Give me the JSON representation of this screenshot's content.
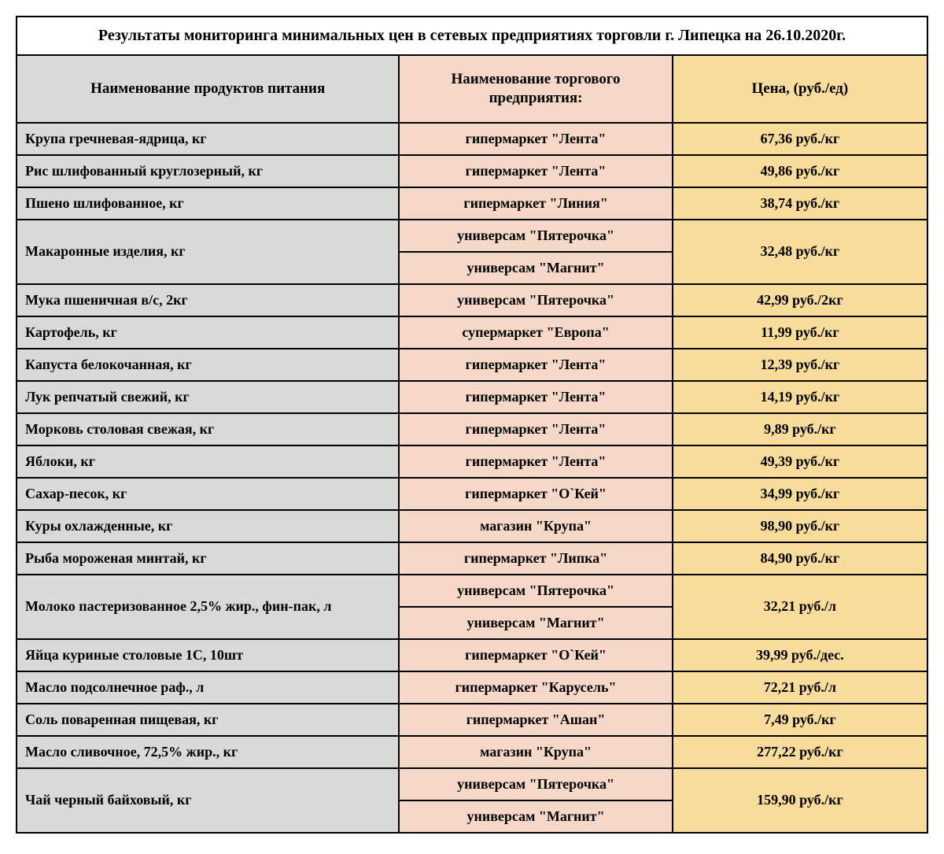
{
  "title": "Результаты мониторинга минимальных цен в сетевых предприятиях торговли г. Липецка на 26.10.2020г.",
  "columns": {
    "product": "Наименование продуктов питания",
    "store": "Наименование торгового предприятия:",
    "price": "Цена, (руб./ед)"
  },
  "colors": {
    "product_bg": "#d9d9d9",
    "store_bg": "#f5d8c8",
    "price_bg": "#f7dc9c",
    "border": "#000000",
    "title_bg": "#ffffff"
  },
  "column_widths_pct": [
    42,
    30,
    28
  ],
  "font": {
    "family": "Times New Roman",
    "title_size_pt": 20,
    "header_size_pt": 19,
    "cell_size_pt": 18,
    "weight": "bold"
  },
  "rows": [
    {
      "product": "Крупа гречневая-ядрица, кг",
      "stores": [
        "гипермаркет \"Лента\""
      ],
      "price": "67,36 руб./кг"
    },
    {
      "product": "Рис шлифованный круглозерный, кг",
      "stores": [
        "гипермаркет \"Лента\""
      ],
      "price": "49,86 руб./кг"
    },
    {
      "product": "Пшено шлифованное,  кг",
      "stores": [
        "гипермаркет \"Линия\""
      ],
      "price": "38,74 руб./кг"
    },
    {
      "product": "Макаронные изделия, кг",
      "stores": [
        "универсам \"Пятерочка\"",
        "универсам \"Магнит\""
      ],
      "price": "32,48  руб./кг"
    },
    {
      "product": "Мука пшеничная в/с, 2кг",
      "stores": [
        "универсам \"Пятерочка\""
      ],
      "price": "42,99 руб./2кг"
    },
    {
      "product": "Картофель, кг",
      "stores": [
        "супермаркет \"Европа\""
      ],
      "price": "11,99 руб./кг"
    },
    {
      "product": "Капуста белокочанная, кг",
      "stores": [
        "гипермаркет \"Лента\""
      ],
      "price": "12,39  руб./кг"
    },
    {
      "product": "Лук репчатый свежий, кг",
      "stores": [
        "гипермаркет \"Лента\""
      ],
      "price": "14,19 руб./кг"
    },
    {
      "product": "Морковь столовая свежая, кг",
      "stores": [
        "гипермаркет \"Лента\""
      ],
      "price": "9,89 руб./кг"
    },
    {
      "product": "Яблоки, кг",
      "stores": [
        "гипермаркет \"Лента\""
      ],
      "price": "49,39 руб./кг"
    },
    {
      "product": "Сахар-песок, кг",
      "stores": [
        "гипермаркет \"О`Кей\""
      ],
      "price": "34,99 руб./кг"
    },
    {
      "product": "Куры охлажденные, кг",
      "stores": [
        "магазин \"Крупа\""
      ],
      "price": "98,90 руб./кг"
    },
    {
      "product": "Рыба мороженая минтай,  кг",
      "stores": [
        "гипермаркет \"Липка\""
      ],
      "price": "84,90 руб./кг"
    },
    {
      "product": "Молоко пастеризованное 2,5% жир., фин-пак, л",
      "stores": [
        "универсам \"Пятерочка\"",
        "универсам \"Магнит\""
      ],
      "price": "32,21 руб./л"
    },
    {
      "product": "Яйца куриные столовые 1С, 10шт",
      "stores": [
        "гипермаркет \"О`Кей\""
      ],
      "price": "39,99 руб./дес."
    },
    {
      "product": "Масло подсолнечное раф., л",
      "stores": [
        "гипермаркет \"Карусель\""
      ],
      "price": "72,21  руб./л"
    },
    {
      "product": "Соль поваренная пищевая,  кг",
      "stores": [
        "гипермаркет \"Ашан\""
      ],
      "price": "7,49 руб./кг"
    },
    {
      "product": "Масло сливочное, 72,5% жир., кг",
      "stores": [
        "магазин \"Крупа\""
      ],
      "price": "277,22 руб./кг"
    },
    {
      "product": "Чай черный байховый, кг",
      "stores": [
        "универсам \"Пятерочка\"",
        "универсам \"Магнит\""
      ],
      "price": "159,90 руб./кг"
    }
  ]
}
